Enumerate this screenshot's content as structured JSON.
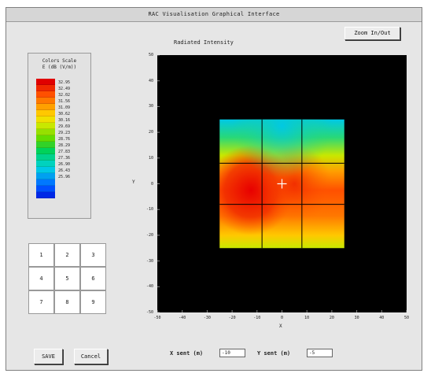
{
  "window": {
    "title": "RAC Visualisation Graphical Interface"
  },
  "toolbar": {
    "zoom_label": "Zoom In/Out"
  },
  "color_scale": {
    "title": "Colors Scale",
    "unit": "E (dB (V/m))",
    "colors": [
      "#e00000",
      "#f02800",
      "#ff5000",
      "#ff7800",
      "#ffa000",
      "#ffc800",
      "#f0e000",
      "#c8e800",
      "#96e000",
      "#64dc00",
      "#32d228",
      "#00d25a",
      "#00d28c",
      "#00d2be",
      "#00c8e6",
      "#00a0f0",
      "#0078ff",
      "#0050ff",
      "#0028e6"
    ],
    "labels": [
      "32.95",
      "32.49",
      "32.02",
      "31.56",
      "31.09",
      "30.62",
      "30.16",
      "29.69",
      "29.23",
      "28.76",
      "28.29",
      "27.83",
      "27.36",
      "26.90",
      "26.43",
      "25.96"
    ]
  },
  "keypad": {
    "keys": [
      "1",
      "2",
      "3",
      "4",
      "5",
      "6",
      "7",
      "8",
      "9"
    ]
  },
  "plot": {
    "title": "Radiated Intensity",
    "xlabel": "X",
    "ylabel": "Y",
    "x_ticks": [
      "-50",
      "-40",
      "-30",
      "-20",
      "-10",
      "0",
      "10",
      "20",
      "30",
      "40",
      "50"
    ],
    "y_ticks": [
      "50",
      "40",
      "30",
      "20",
      "10",
      "0",
      "-10",
      "-20",
      "-30",
      "-40",
      "-50"
    ]
  },
  "chart_data": {
    "type": "heatmap",
    "title": "Radiated Intensity",
    "xlabel": "X",
    "ylabel": "Y",
    "xlim": [
      -50,
      50
    ],
    "ylim": [
      -50,
      50
    ],
    "heatmap_extent": {
      "x": [
        -25,
        25
      ],
      "y": [
        -25,
        25
      ]
    },
    "grid_divisions": {
      "x": [
        -8,
        8
      ],
      "y": [
        -8,
        8
      ]
    },
    "cursor": {
      "x": 0,
      "y": 0
    },
    "colorbar": {
      "min": 25.96,
      "max": 32.95
    }
  },
  "fields": {
    "x_label": "X sent (m)",
    "x_value": "-10",
    "y_label": "Y sent (m)",
    "y_value": "-5"
  },
  "buttons": {
    "save": "SAVE",
    "cancel": "Cancel"
  }
}
